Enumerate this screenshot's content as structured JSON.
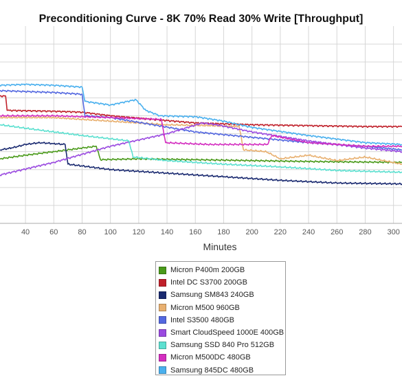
{
  "chart_data": {
    "type": "line",
    "title": "Preconditioning Curve - 8K 70% Read 30% Write [Throughput]",
    "xlabel": "Minutes",
    "ylabel": "",
    "xlim": [
      22,
      306
    ],
    "ylim": [
      0,
      11
    ],
    "x_ticks": [
      40,
      60,
      80,
      100,
      120,
      140,
      160,
      180,
      200,
      220,
      240,
      260,
      280,
      300
    ],
    "y_ticks": [
      0,
      1,
      2,
      3,
      4,
      5,
      6,
      7,
      8,
      9,
      10
    ],
    "grid": true,
    "legend_position": "bottom-center",
    "series": [
      {
        "name": "Micron P400m 200GB",
        "color": "#4a9a1a",
        "points": [
          [
            22,
            3.6
          ],
          [
            40,
            3.8
          ],
          [
            60,
            4.0
          ],
          [
            80,
            4.2
          ],
          [
            90,
            4.3
          ],
          [
            93,
            3.55
          ],
          [
            120,
            3.6
          ],
          [
            160,
            3.55
          ],
          [
            200,
            3.5
          ],
          [
            240,
            3.45
          ],
          [
            306,
            3.4
          ]
        ]
      },
      {
        "name": "Intel DC S3700 200GB",
        "color": "#c0202a",
        "points": [
          [
            22,
            7.1
          ],
          [
            26,
            7.1
          ],
          [
            27,
            6.3
          ],
          [
            60,
            6.25
          ],
          [
            80,
            6.2
          ],
          [
            100,
            6.0
          ],
          [
            130,
            5.8
          ],
          [
            160,
            5.6
          ],
          [
            200,
            5.5
          ],
          [
            240,
            5.45
          ],
          [
            280,
            5.4
          ],
          [
            306,
            5.4
          ]
        ]
      },
      {
        "name": "Samsung SM843 240GB",
        "color": "#1a2a70",
        "points": [
          [
            22,
            4.1
          ],
          [
            30,
            4.2
          ],
          [
            40,
            4.4
          ],
          [
            50,
            4.5
          ],
          [
            60,
            4.45
          ],
          [
            68,
            4.4
          ],
          [
            70,
            3.3
          ],
          [
            100,
            3.0
          ],
          [
            140,
            2.8
          ],
          [
            180,
            2.6
          ],
          [
            220,
            2.4
          ],
          [
            260,
            2.25
          ],
          [
            306,
            2.2
          ]
        ]
      },
      {
        "name": "Micron M500 960GB",
        "color": "#e8b070",
        "points": [
          [
            22,
            5.9
          ],
          [
            60,
            5.9
          ],
          [
            100,
            5.7
          ],
          [
            140,
            5.5
          ],
          [
            170,
            5.45
          ],
          [
            191,
            5.4
          ],
          [
            194,
            4.1
          ],
          [
            210,
            4.0
          ],
          [
            220,
            3.6
          ],
          [
            240,
            3.8
          ],
          [
            260,
            3.5
          ],
          [
            280,
            3.7
          ],
          [
            306,
            3.3
          ]
        ]
      },
      {
        "name": "Intel S3500 480GB",
        "color": "#5468e0",
        "points": [
          [
            22,
            7.4
          ],
          [
            60,
            7.3
          ],
          [
            80,
            7.2
          ],
          [
            82,
            6.0
          ],
          [
            100,
            5.9
          ],
          [
            130,
            5.5
          ],
          [
            160,
            5.1
          ],
          [
            200,
            4.8
          ],
          [
            240,
            4.5
          ],
          [
            280,
            4.3
          ],
          [
            306,
            4.1
          ]
        ]
      },
      {
        "name": "Smart CloudSpeed 1000E 400GB",
        "color": "#9a4ae0",
        "points": [
          [
            22,
            2.7
          ],
          [
            60,
            3.4
          ],
          [
            100,
            4.3
          ],
          [
            140,
            5.0
          ],
          [
            165,
            5.6
          ],
          [
            175,
            5.5
          ],
          [
            200,
            5.1
          ],
          [
            240,
            4.6
          ],
          [
            280,
            4.2
          ],
          [
            306,
            4.0
          ]
        ]
      },
      {
        "name": "Samsung SSD 840 Pro 512GB",
        "color": "#5ce0d0",
        "points": [
          [
            22,
            5.5
          ],
          [
            50,
            5.2
          ],
          [
            80,
            4.9
          ],
          [
            113,
            4.6
          ],
          [
            116,
            3.7
          ],
          [
            140,
            3.5
          ],
          [
            180,
            3.3
          ],
          [
            220,
            3.15
          ],
          [
            260,
            2.95
          ],
          [
            306,
            2.85
          ]
        ]
      },
      {
        "name": "Micron M500DC 480GB",
        "color": "#d42ec0",
        "points": [
          [
            22,
            6.0
          ],
          [
            60,
            6.0
          ],
          [
            100,
            5.9
          ],
          [
            136,
            5.8
          ],
          [
            139,
            4.5
          ],
          [
            170,
            4.4
          ],
          [
            200,
            4.4
          ],
          [
            211,
            4.4
          ],
          [
            214,
            4.9
          ],
          [
            240,
            4.5
          ],
          [
            260,
            4.4
          ],
          [
            280,
            4.3
          ],
          [
            306,
            4.3
          ]
        ]
      },
      {
        "name": "Samsung 845DC 480GB",
        "color": "#4ab0ee",
        "points": [
          [
            22,
            7.7
          ],
          [
            40,
            7.75
          ],
          [
            60,
            7.7
          ],
          [
            80,
            7.6
          ],
          [
            82,
            6.8
          ],
          [
            100,
            6.6
          ],
          [
            118,
            6.9
          ],
          [
            125,
            6.3
          ],
          [
            135,
            6.0
          ],
          [
            160,
            5.95
          ],
          [
            180,
            5.7
          ],
          [
            200,
            5.35
          ],
          [
            240,
            4.9
          ],
          [
            280,
            4.5
          ],
          [
            306,
            4.4
          ]
        ]
      }
    ]
  }
}
